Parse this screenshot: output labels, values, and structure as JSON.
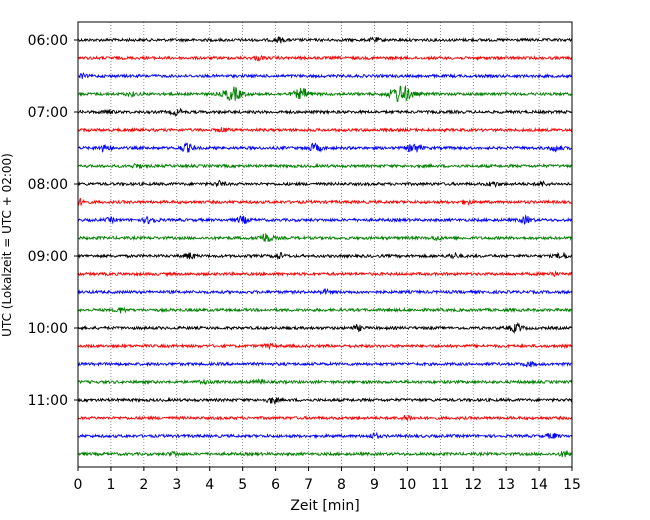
{
  "chart_data": {
    "type": "line",
    "title": "",
    "xlabel": "Zeit  [min]",
    "ylabel": "UTC (Lokalzeit = UTC + 02:00)",
    "xlim": [
      0,
      15
    ],
    "xticks": [
      0,
      1,
      2,
      3,
      4,
      5,
      6,
      7,
      8,
      9,
      10,
      11,
      12,
      13,
      14,
      15
    ],
    "ytick_labels": [
      "06:00",
      "07:00",
      "08:00",
      "09:00",
      "10:00",
      "11:00"
    ],
    "trace_interval_min": 15,
    "grid": "vertical dotted at each minute",
    "color_cycle": [
      "#000000",
      "#ff0000",
      "#0000ff",
      "#008000"
    ],
    "traces": [
      {
        "start": "06:00",
        "color": "#000000",
        "events": [
          {
            "t": 6.1,
            "a": 0.25
          },
          {
            "t": 9.0,
            "a": 0.2
          }
        ]
      },
      {
        "start": "06:15",
        "color": "#ff0000",
        "events": [
          {
            "t": 5.5,
            "a": 0.2
          }
        ]
      },
      {
        "start": "06:30",
        "color": "#0000ff",
        "events": [
          {
            "t": 0.1,
            "a": 0.2
          }
        ]
      },
      {
        "start": "06:45",
        "color": "#008000",
        "events": [
          {
            "t": 4.7,
            "a": 0.7
          },
          {
            "t": 6.8,
            "a": 0.55
          },
          {
            "t": 9.8,
            "a": 0.9
          },
          {
            "t": 1.6,
            "a": 0.2
          }
        ]
      },
      {
        "start": "07:00",
        "color": "#000000",
        "events": [
          {
            "t": 0.9,
            "a": 0.2
          },
          {
            "t": 3.0,
            "a": 0.3
          }
        ]
      },
      {
        "start": "07:15",
        "color": "#ff0000",
        "events": [
          {
            "t": 4.4,
            "a": 0.2
          }
        ]
      },
      {
        "start": "07:30",
        "color": "#0000ff",
        "events": [
          {
            "t": 0.8,
            "a": 0.35
          },
          {
            "t": 3.3,
            "a": 0.4
          },
          {
            "t": 7.2,
            "a": 0.4
          },
          {
            "t": 10.2,
            "a": 0.45
          },
          {
            "t": 14.5,
            "a": 0.3
          }
        ]
      },
      {
        "start": "07:45",
        "color": "#008000",
        "events": [
          {
            "t": 1.8,
            "a": 0.2
          }
        ]
      },
      {
        "start": "08:00",
        "color": "#000000",
        "events": [
          {
            "t": 4.3,
            "a": 0.25
          },
          {
            "t": 12.6,
            "a": 0.25
          },
          {
            "t": 14.1,
            "a": 0.2
          }
        ]
      },
      {
        "start": "08:15",
        "color": "#ff0000",
        "events": [
          {
            "t": 0.1,
            "a": 0.3
          },
          {
            "t": 11.8,
            "a": 0.2
          }
        ]
      },
      {
        "start": "08:30",
        "color": "#0000ff",
        "events": [
          {
            "t": 2.2,
            "a": 0.35
          },
          {
            "t": 5.0,
            "a": 0.35
          },
          {
            "t": 13.6,
            "a": 0.35
          },
          {
            "t": 1.0,
            "a": 0.2
          }
        ]
      },
      {
        "start": "08:45",
        "color": "#008000",
        "events": [
          {
            "t": 5.7,
            "a": 0.45
          },
          {
            "t": 10.9,
            "a": 0.2
          }
        ]
      },
      {
        "start": "09:00",
        "color": "#000000",
        "events": [
          {
            "t": 3.4,
            "a": 0.3
          },
          {
            "t": 6.1,
            "a": 0.3
          },
          {
            "t": 11.4,
            "a": 0.25
          },
          {
            "t": 14.7,
            "a": 0.3
          }
        ]
      },
      {
        "start": "09:15",
        "color": "#ff0000",
        "events": [
          {
            "t": 14.4,
            "a": 0.2
          }
        ]
      },
      {
        "start": "09:30",
        "color": "#0000ff",
        "events": [
          {
            "t": 7.5,
            "a": 0.2
          }
        ]
      },
      {
        "start": "09:45",
        "color": "#008000",
        "events": [
          {
            "t": 1.3,
            "a": 0.25
          }
        ]
      },
      {
        "start": "10:00",
        "color": "#000000",
        "events": [
          {
            "t": 8.5,
            "a": 0.25
          },
          {
            "t": 13.3,
            "a": 0.4
          }
        ]
      },
      {
        "start": "10:15",
        "color": "#ff0000",
        "events": [
          {
            "t": 5.8,
            "a": 0.2
          }
        ]
      },
      {
        "start": "10:30",
        "color": "#0000ff",
        "events": [
          {
            "t": 13.7,
            "a": 0.25
          }
        ]
      },
      {
        "start": "10:45",
        "color": "#008000",
        "events": [
          {
            "t": 3.8,
            "a": 0.2
          },
          {
            "t": 5.5,
            "a": 0.2
          }
        ]
      },
      {
        "start": "11:00",
        "color": "#000000",
        "events": [
          {
            "t": 5.9,
            "a": 0.3
          }
        ]
      },
      {
        "start": "11:15",
        "color": "#ff0000",
        "events": [
          {
            "t": 10.0,
            "a": 0.25
          }
        ]
      },
      {
        "start": "11:30",
        "color": "#0000ff",
        "events": [
          {
            "t": 9.0,
            "a": 0.25
          },
          {
            "t": 14.4,
            "a": 0.25
          }
        ]
      },
      {
        "start": "11:45",
        "color": "#008000",
        "events": [
          {
            "t": 2.9,
            "a": 0.2
          },
          {
            "t": 14.8,
            "a": 0.3
          }
        ]
      }
    ]
  }
}
